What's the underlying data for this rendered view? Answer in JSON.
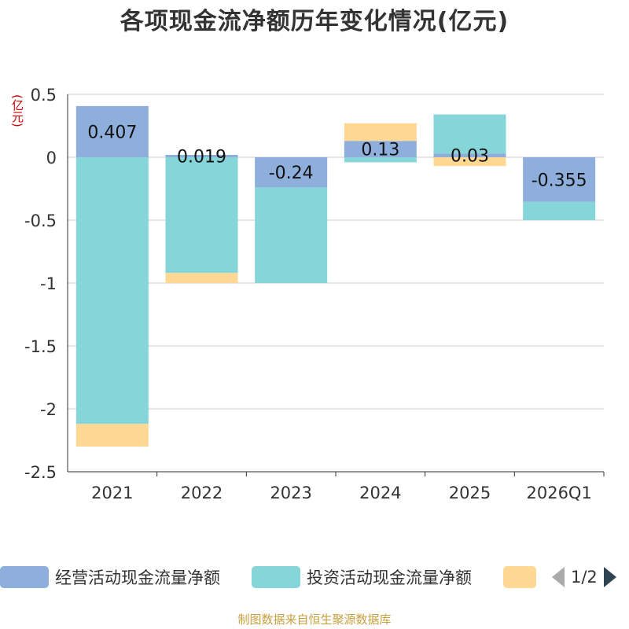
{
  "chart_data": {
    "type": "bar",
    "stacked": true,
    "title": "各项现金流净额历年变化情况(亿元)",
    "ylabel": "(亿元)",
    "categories": [
      "2021",
      "2022",
      "2023",
      "2024",
      "2025",
      "2026Q1"
    ],
    "ylim": [
      -2.5,
      0.5
    ],
    "yticks": [
      0.5,
      0,
      -0.5,
      -1,
      -1.5,
      -2,
      -2.5
    ],
    "ytick_labels": [
      "0.5",
      "0",
      "-0.5",
      "-1",
      "-1.5",
      "-2",
      "-2.5"
    ],
    "series": [
      {
        "name": "经营活动现金流量净额",
        "color": "#8eaedb",
        "values": [
          0.407,
          0.019,
          -0.24,
          0.13,
          0.03,
          -0.355
        ]
      },
      {
        "name": "投资活动现金流量净额",
        "color": "#86d5d8",
        "values": [
          -2.12,
          -0.92,
          -0.76,
          -0.04,
          0.31,
          -0.145
        ]
      },
      {
        "name": "",
        "color": "#ffd894",
        "values": [
          -0.18,
          -0.08,
          0,
          0.14,
          -0.07,
          0
        ]
      }
    ],
    "data_labels": [
      "0.407",
      "0.019",
      "-0.24",
      "0.13",
      "0.03",
      "-0.355"
    ],
    "legend_position": "bottom"
  },
  "legend": {
    "items": [
      "经营活动现金流量净额",
      "投资活动现金流量净额",
      ""
    ],
    "page_indicator": "1/2"
  },
  "footer": "制图数据来自恒生聚源数据库"
}
